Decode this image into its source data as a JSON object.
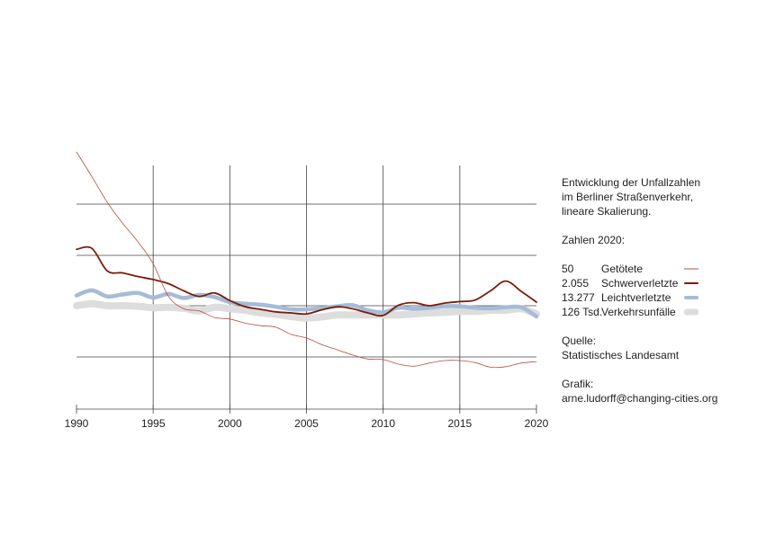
{
  "chart_data": {
    "type": "line",
    "x_ticks": [
      "1990",
      "1995",
      "2000",
      "2005",
      "2010",
      "2015",
      "2020"
    ],
    "xlim": [
      1990,
      2020
    ],
    "grid": true,
    "legend_placement": "right",
    "series": [
      {
        "key": "verkehrsunfaelle",
        "color": "#dddddd",
        "x": [
          1990,
          1991,
          1992,
          1993,
          1994,
          1995,
          1996,
          1997,
          1998,
          1999,
          2000,
          2001,
          2002,
          2003,
          2004,
          2005,
          2006,
          2007,
          2008,
          2009,
          2010,
          2011,
          2012,
          2013,
          2014,
          2015,
          2016,
          2017,
          2018,
          2019,
          2020
        ],
        "values": [
          100,
          104,
          100,
          100,
          99,
          96,
          97,
          95,
          90,
          97,
          94,
          91,
          86,
          83,
          79,
          76,
          78,
          82,
          82,
          82,
          82,
          82,
          84,
          86,
          87,
          89,
          89,
          91,
          91,
          94,
          84
        ]
      },
      {
        "key": "leichtverletzte",
        "color": "#a6bbd7",
        "x": [
          1990,
          1991,
          1992,
          1993,
          1994,
          1995,
          1996,
          1997,
          1998,
          1999,
          2000,
          2001,
          2002,
          2003,
          2004,
          2005,
          2006,
          2007,
          2008,
          2009,
          2010,
          2011,
          2012,
          2013,
          2014,
          2015,
          2016,
          2017,
          2018,
          2019,
          2020
        ],
        "values": [
          120,
          130,
          118,
          122,
          125,
          116,
          123,
          115,
          121,
          117,
          107,
          104,
          102,
          98,
          93,
          93,
          95,
          99,
          101,
          91,
          87,
          96,
          94,
          96,
          99,
          99,
          96,
          95,
          97,
          97,
          79
        ]
      },
      {
        "key": "schwerverletzte",
        "color": "#7a1d0b",
        "x": [
          1990,
          1991,
          1992,
          1993,
          1994,
          1995,
          1996,
          1997,
          1998,
          1999,
          2000,
          2001,
          2002,
          2003,
          2004,
          2005,
          2006,
          2007,
          2008,
          2009,
          2010,
          2011,
          2012,
          2013,
          2014,
          2015,
          2016,
          2017,
          2018,
          2019,
          2020
        ],
        "values": [
          210,
          212,
          168,
          164,
          157,
          151,
          143,
          129,
          118,
          125,
          110,
          98,
          93,
          88,
          86,
          84,
          92,
          98,
          94,
          86,
          81,
          101,
          106,
          100,
          105,
          108,
          111,
          129,
          148,
          128,
          107
        ]
      },
      {
        "key": "getoetete",
        "color": "#b84c3f",
        "x": [
          1990,
          1991,
          1992,
          1993,
          1994,
          1995,
          1996,
          1997,
          1998,
          1999,
          2000,
          2001,
          2002,
          2003,
          2004,
          2005,
          2006,
          2007,
          2008,
          2009,
          2010,
          2011,
          2012,
          2013,
          2014,
          2015,
          2016,
          2017,
          2018,
          2019,
          2020
        ],
        "values": [
          400,
          352,
          302,
          261,
          225,
          182,
          118,
          94,
          90,
          77,
          74,
          66,
          61,
          58,
          44,
          37,
          24,
          14,
          4,
          -4,
          -5,
          -14,
          -18,
          -12,
          -7,
          -7,
          -11,
          -20,
          -19,
          -12,
          -9
        ]
      }
    ]
  },
  "panel": {
    "description": [
      "Entwicklung der Unfallzahlen",
      "im Berliner Straßenverkehr,",
      "lineare Skalierung."
    ],
    "zahlen_heading": "Zahlen 2020:",
    "legend": [
      {
        "key": "getoetete",
        "value": "50",
        "label": "Getötete",
        "color": "#b84c3f",
        "swatch_weight": "thin"
      },
      {
        "key": "schwerverletzte",
        "value": "2.055",
        "label": "Schwerverletzte",
        "color": "#7a1d0b",
        "swatch_weight": "medium"
      },
      {
        "key": "leichtverletzte",
        "value": "13.277",
        "label": "Leichtverletzte",
        "color": "#a6bbd7",
        "swatch_weight": "thick"
      },
      {
        "key": "verkehrsunfaelle",
        "value": "126 Tsd.",
        "label": "Verkehrsunfälle",
        "color": "#dddddd",
        "swatch_weight": "thickest"
      }
    ],
    "source_heading": "Quelle:",
    "source": "Statistisches Landesamt",
    "credit_heading": "Grafik:",
    "credit": "arne.ludorff@changing-cities.org"
  }
}
